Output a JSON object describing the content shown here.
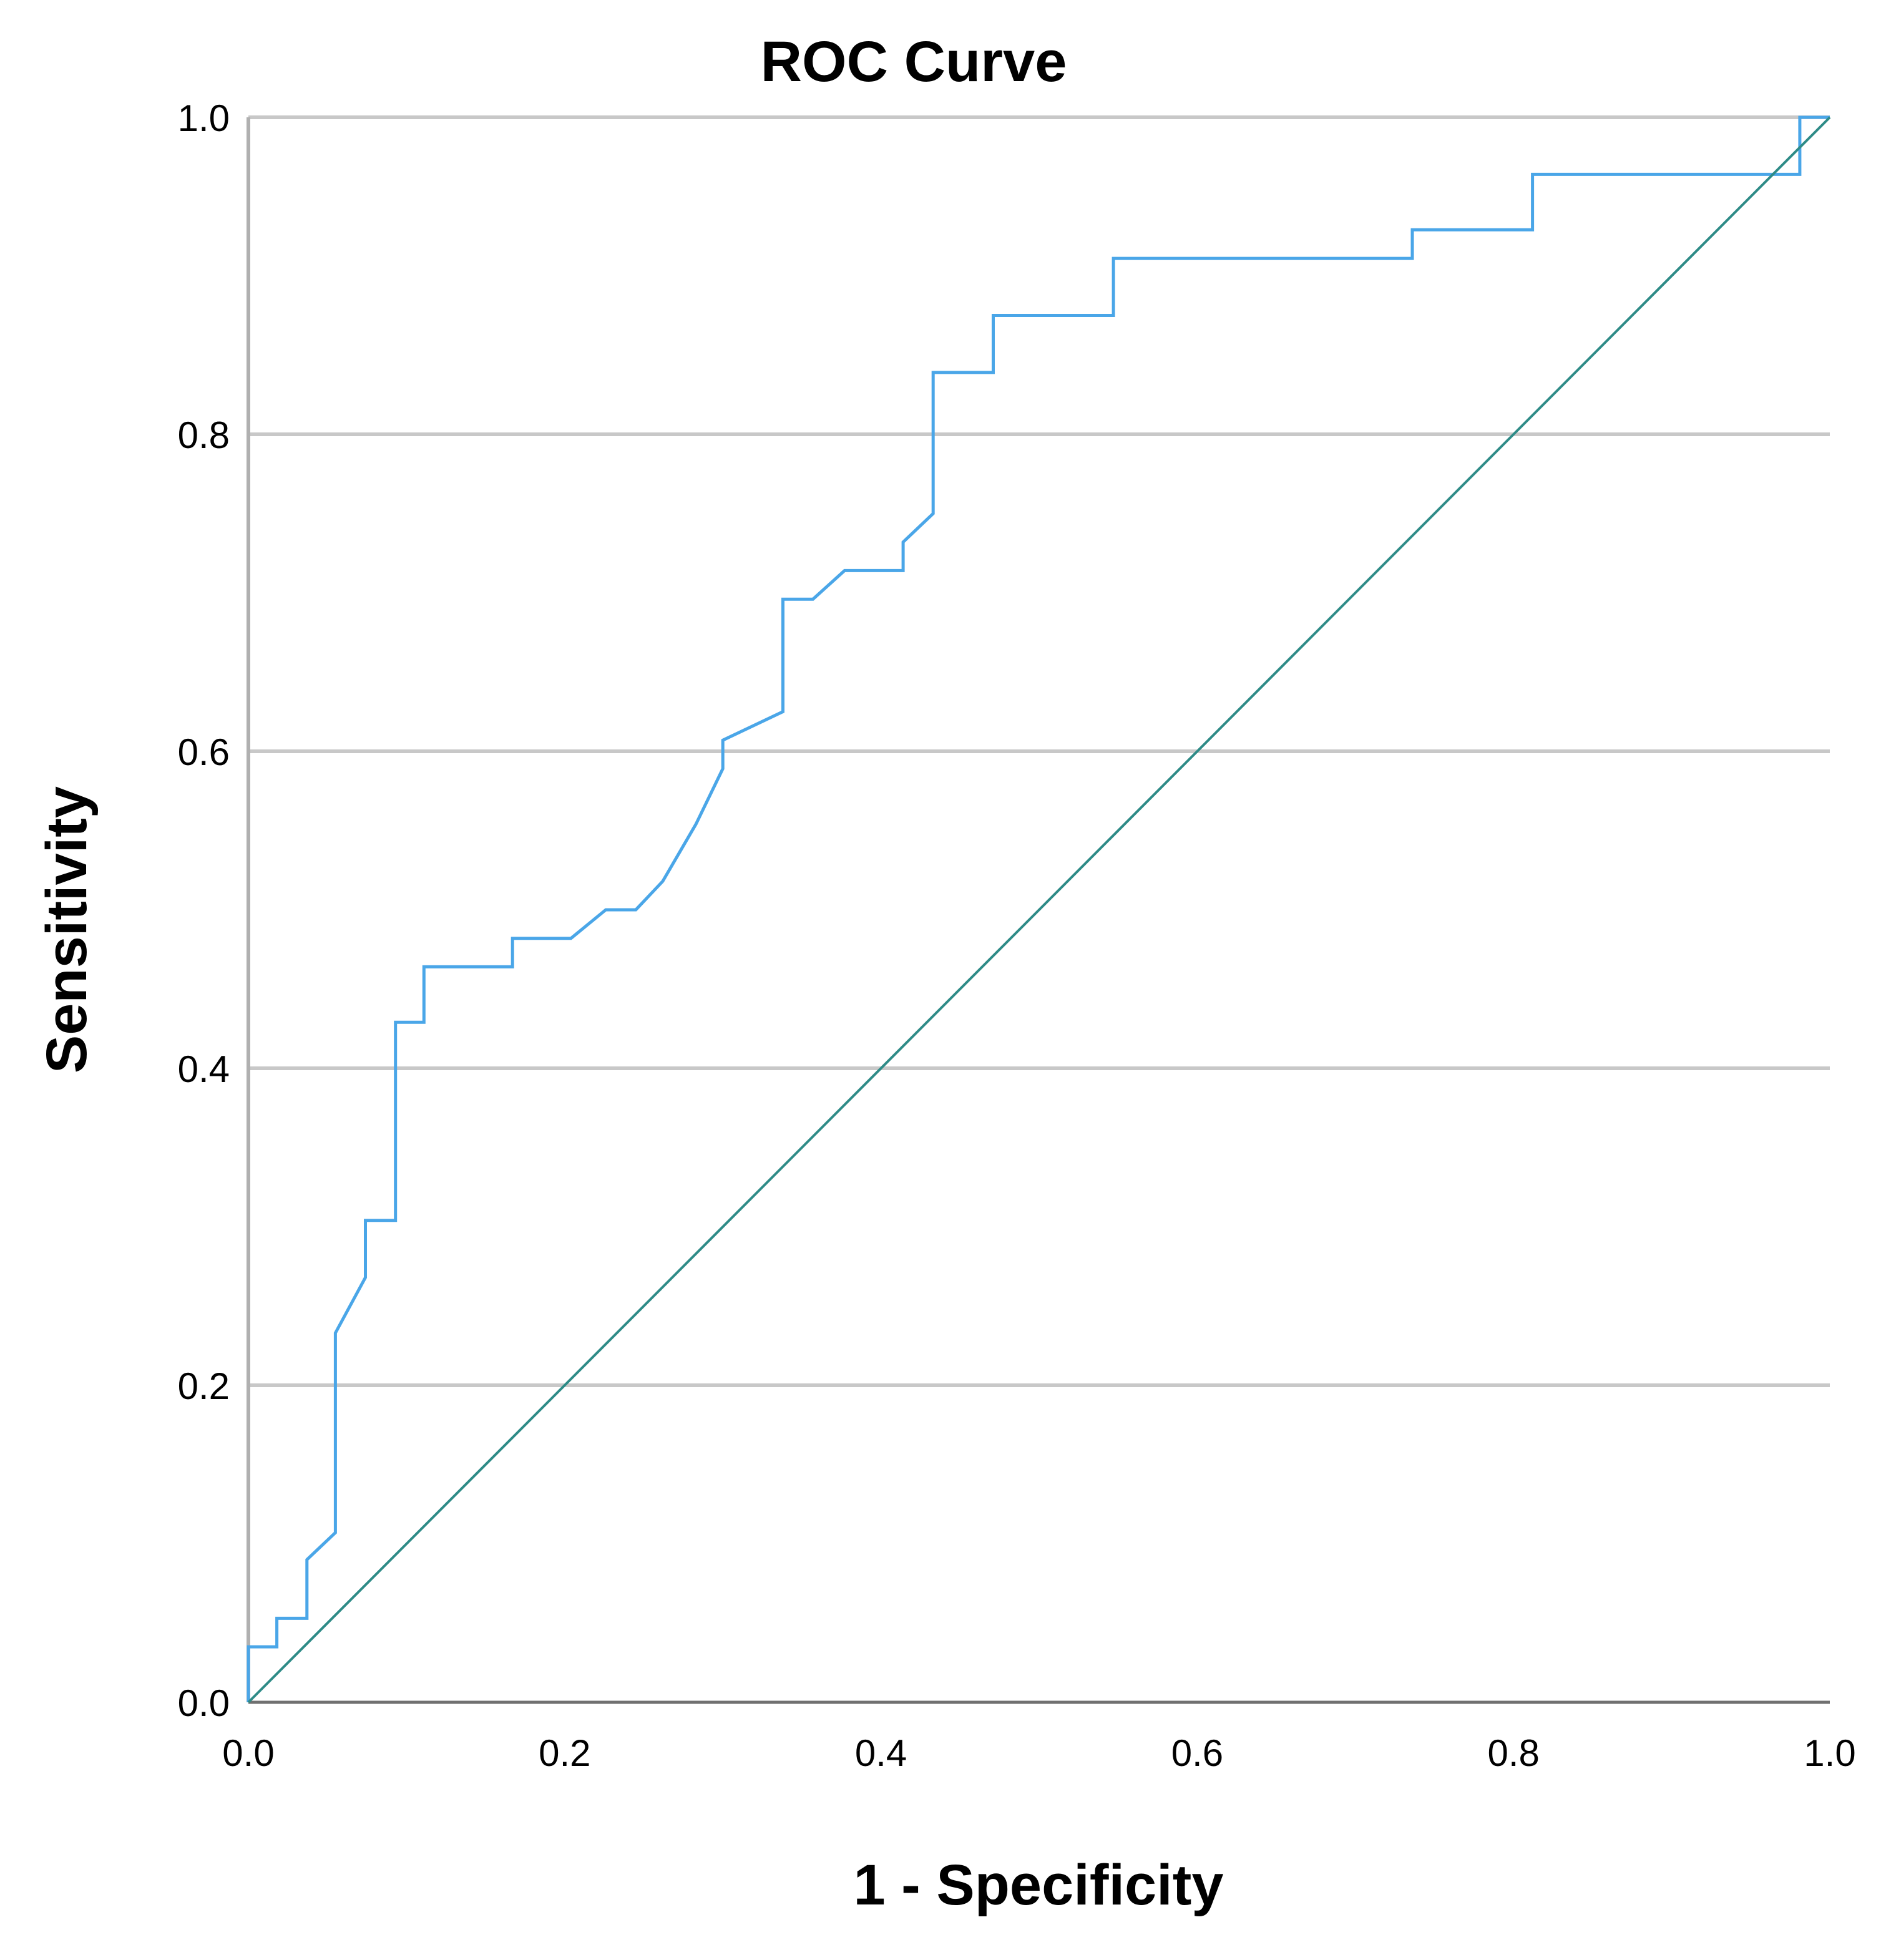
{
  "chart_data": {
    "type": "line",
    "title": "ROC Curve",
    "xlabel": "1 - Specificity",
    "ylabel": "Sensitivity",
    "xlim": [
      0,
      1
    ],
    "ylim": [
      0,
      1
    ],
    "xticks": [
      "0.0",
      "0.2",
      "0.4",
      "0.6",
      "0.8",
      "1.0"
    ],
    "yticks": [
      "0.0",
      "0.2",
      "0.4",
      "0.6",
      "0.8",
      "1.0"
    ],
    "grid": "horizontal",
    "legend": "none",
    "series": [
      {
        "color": "#4aa6e8",
        "x": [
          0,
          0,
          0.018,
          0.018,
          0.037,
          0.037,
          0.055,
          0.055,
          0.074,
          0.074,
          0.093,
          0.093,
          0.111,
          0.111,
          0.167,
          0.167,
          0.204,
          0.226,
          0.245,
          0.262,
          0.283,
          0.3,
          0.3,
          0.338,
          0.338,
          0.357,
          0.377,
          0.414,
          0.414,
          0.433,
          0.433,
          0.471,
          0.471,
          0.547,
          0.547,
          0.736,
          0.736,
          0.812,
          0.812,
          0.981,
          0.981,
          1.0
        ],
        "y": [
          0,
          0.035,
          0.035,
          0.053,
          0.053,
          0.09,
          0.107,
          0.233,
          0.268,
          0.304,
          0.304,
          0.429,
          0.429,
          0.464,
          0.464,
          0.482,
          0.482,
          0.5,
          0.5,
          0.518,
          0.554,
          0.589,
          0.607,
          0.625,
          0.696,
          0.696,
          0.714,
          0.714,
          0.732,
          0.75,
          0.839,
          0.839,
          0.875,
          0.875,
          0.911,
          0.911,
          0.929,
          0.929,
          0.964,
          0.964,
          1.0,
          1.0
        ]
      },
      {
        "color": "#2e8b87",
        "x": [
          0,
          1
        ],
        "y": [
          0,
          1
        ]
      }
    ]
  }
}
